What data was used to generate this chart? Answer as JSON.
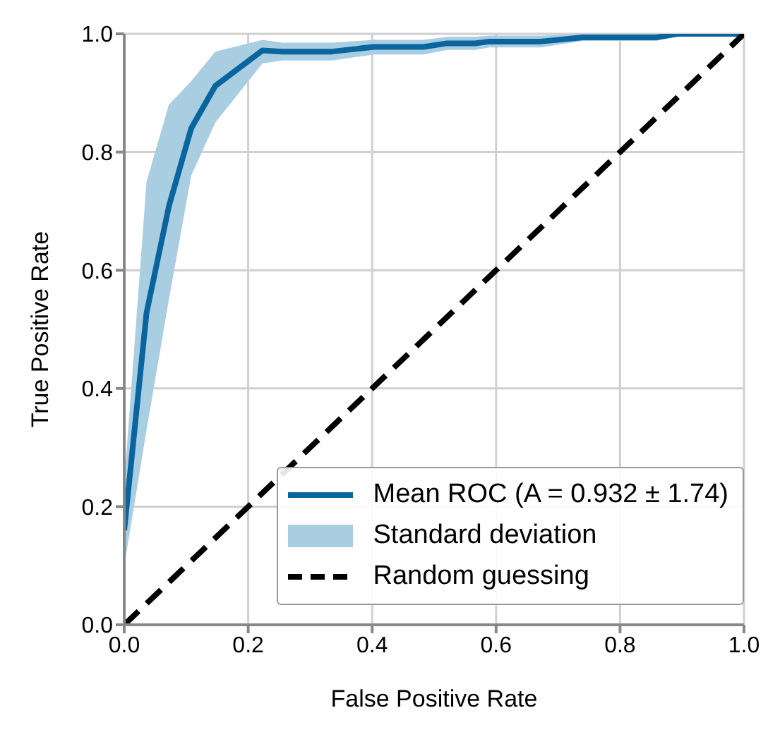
{
  "chart_data": {
    "type": "line",
    "xlabel": "False Positive Rate",
    "ylabel": "True Positive Rate",
    "xlim": [
      0,
      1
    ],
    "ylim": [
      0,
      1
    ],
    "xticks": [
      {
        "value": 0,
        "label": "0.0"
      },
      {
        "value": 0.2,
        "label": "0.2"
      },
      {
        "value": 0.4,
        "label": "0.4"
      },
      {
        "value": 0.6,
        "label": "0.6"
      },
      {
        "value": 0.8,
        "label": "0.8"
      },
      {
        "value": 1,
        "label": "1.0"
      }
    ],
    "yticks": [
      {
        "value": 0,
        "label": "0.0"
      },
      {
        "value": 0.2,
        "label": "0.2"
      },
      {
        "value": 0.4,
        "label": "0.4"
      },
      {
        "value": 0.6,
        "label": "0.6"
      },
      {
        "value": 0.8,
        "label": "0.8"
      },
      {
        "value": 1,
        "label": "1.0"
      }
    ],
    "grid": true,
    "legend": "bottom right",
    "line_style": "solid",
    "annotations": [
      "Standard deviation"
    ],
    "series": [
      {
        "name": "Mean ROC (A = 0.932 ± 1.74)",
        "color": "#0a649e",
        "x": [
          0,
          0.036,
          0.072,
          0.108,
          0.147,
          0.223,
          0.255,
          0.335,
          0.403,
          0.483,
          0.521,
          0.566,
          0.589,
          0.672,
          0.74,
          0.859,
          0.893,
          1
        ],
        "values": [
          0.16,
          0.528,
          0.708,
          0.84,
          0.912,
          0.972,
          0.97,
          0.97,
          0.978,
          0.978,
          0.984,
          0.984,
          0.987,
          0.987,
          0.994,
          0.994,
          1,
          1
        ],
        "lower": [
          0.1,
          0.33,
          0.55,
          0.76,
          0.85,
          0.95,
          0.955,
          0.955,
          0.965,
          0.965,
          0.973,
          0.973,
          0.977,
          0.977,
          0.988,
          0.988,
          1,
          1
        ],
        "upper": [
          0.24,
          0.75,
          0.88,
          0.92,
          0.97,
          0.99,
          0.985,
          0.985,
          0.99,
          0.99,
          0.995,
          0.995,
          0.997,
          0.997,
          1,
          1,
          1,
          1
        ]
      },
      {
        "name": "Random guessing",
        "color": "#000000",
        "line_style": "dashed",
        "x": [
          0,
          1
        ],
        "values": [
          0,
          1
        ]
      }
    ]
  }
}
